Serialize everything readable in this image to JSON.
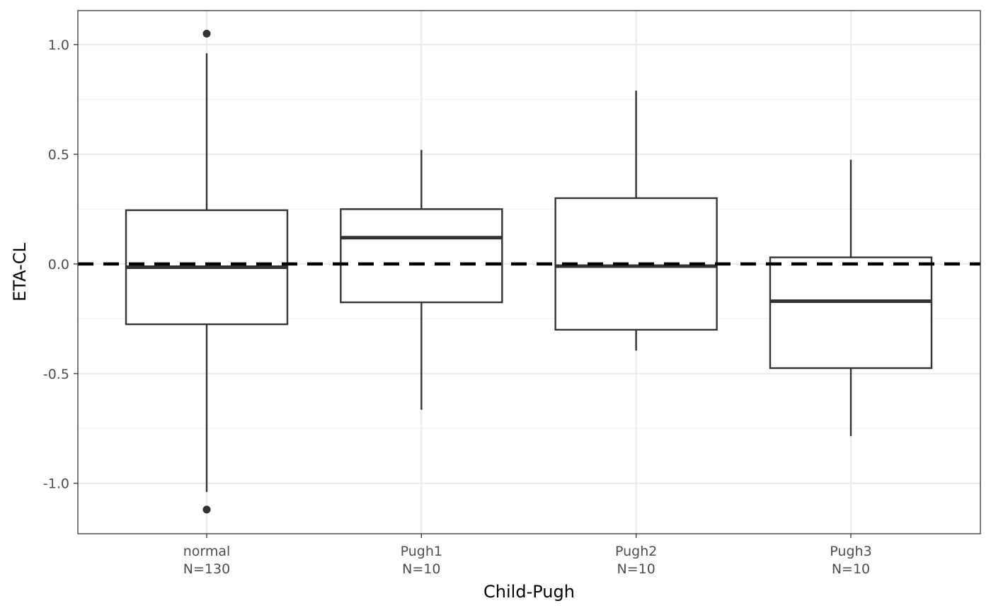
{
  "chart_data": {
    "type": "box",
    "xlabel": "Child-Pugh",
    "ylabel": "ETA-CL",
    "ylim": [
      -1.23,
      1.155
    ],
    "y_ticks": [
      -1.0,
      -0.5,
      0.0,
      0.5,
      1.0
    ],
    "y_tick_labels": [
      "-1.0",
      "-0.5",
      "0.0",
      "0.5",
      "1.0"
    ],
    "reference_line": {
      "y": 0.0,
      "style": "dashed",
      "color": "#000000"
    },
    "grid": true,
    "categories": [
      {
        "name": "normal",
        "n_label": "N=130"
      },
      {
        "name": "Pugh1",
        "n_label": "N=10"
      },
      {
        "name": "Pugh2",
        "n_label": "N=10"
      },
      {
        "name": "Pugh3",
        "n_label": "N=10"
      }
    ],
    "boxes": [
      {
        "category": "normal",
        "whisker_low": -1.04,
        "q1": -0.275,
        "median": -0.015,
        "q3": 0.245,
        "whisker_high": 0.96,
        "outliers": [
          1.05,
          -1.12
        ]
      },
      {
        "category": "Pugh1",
        "whisker_low": -0.665,
        "q1": -0.175,
        "median": 0.12,
        "q3": 0.25,
        "whisker_high": 0.52,
        "outliers": []
      },
      {
        "category": "Pugh2",
        "whisker_low": -0.395,
        "q1": -0.3,
        "median": -0.01,
        "q3": 0.3,
        "whisker_high": 0.79,
        "outliers": []
      },
      {
        "category": "Pugh3",
        "whisker_low": -0.785,
        "q1": -0.475,
        "median": -0.17,
        "q3": 0.03,
        "whisker_high": 0.475,
        "outliers": []
      }
    ],
    "colors": {
      "box_stroke": "#333333",
      "box_fill": "#ffffff",
      "major_grid": "#ebebeb",
      "minor_grid": "#f3f3f3",
      "panel_border": "#333333"
    }
  }
}
